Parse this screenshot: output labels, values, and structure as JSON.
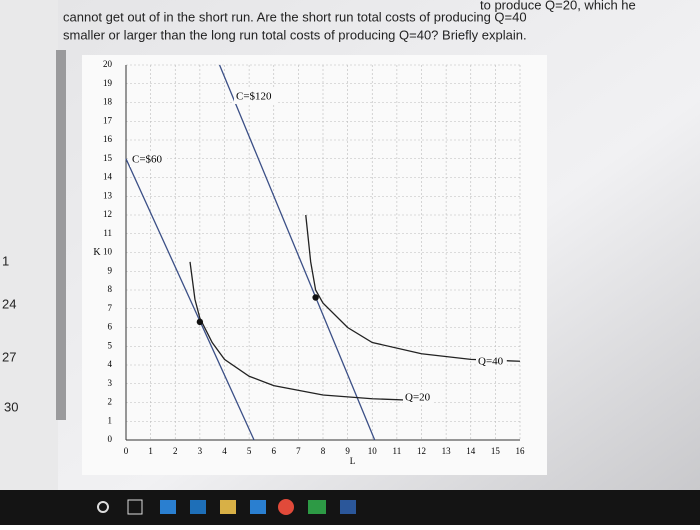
{
  "question": [
    "to produce Q=20, which he",
    "cannot get out of in the short run. Are the short run total costs of producing Q=40",
    "smaller or larger than the long run total costs of producing Q=40? Briefly explain."
  ],
  "sidebar": [
    "1",
    "24",
    "27",
    "30"
  ],
  "chart_data": {
    "type": "line",
    "x_label": "L",
    "y_label": "K",
    "xlim": [
      0,
      16
    ],
    "ylim": [
      0,
      20
    ],
    "xticks": [
      0,
      1,
      2,
      3,
      4,
      5,
      6,
      7,
      8,
      9,
      10,
      11,
      12,
      13,
      14,
      15,
      16
    ],
    "yticks": [
      0,
      1,
      2,
      3,
      4,
      5,
      6,
      7,
      8,
      9,
      10,
      11,
      12,
      13,
      14,
      15,
      16,
      17,
      18,
      19,
      20
    ],
    "grid": true,
    "series": [
      {
        "name": "C=$60",
        "color": "#3b4f86",
        "x": [
          0,
          5.2
        ],
        "values": [
          15,
          0
        ]
      },
      {
        "name": "C=$120",
        "color": "#3b4f86",
        "x": [
          3.8,
          10.1
        ],
        "values": [
          20,
          0
        ]
      },
      {
        "name": "Q=20",
        "color": "#222222",
        "x": [
          2.6,
          2.8,
          3,
          3.5,
          4,
          5,
          6,
          8,
          10,
          12
        ],
        "values": [
          9.5,
          7.5,
          6.5,
          5.2,
          4.3,
          3.4,
          2.9,
          2.4,
          2.2,
          2.1
        ]
      },
      {
        "name": "Q=40",
        "color": "#222222",
        "x": [
          7.3,
          7.5,
          7.7,
          8,
          9,
          10,
          12,
          14,
          16
        ],
        "values": [
          12,
          9.5,
          8,
          7.3,
          6,
          5.2,
          4.6,
          4.3,
          4.2
        ]
      }
    ],
    "points": {
      "color": "#111111",
      "x": [
        3,
        7.7
      ],
      "values": [
        6.3,
        7.6
      ]
    }
  }
}
